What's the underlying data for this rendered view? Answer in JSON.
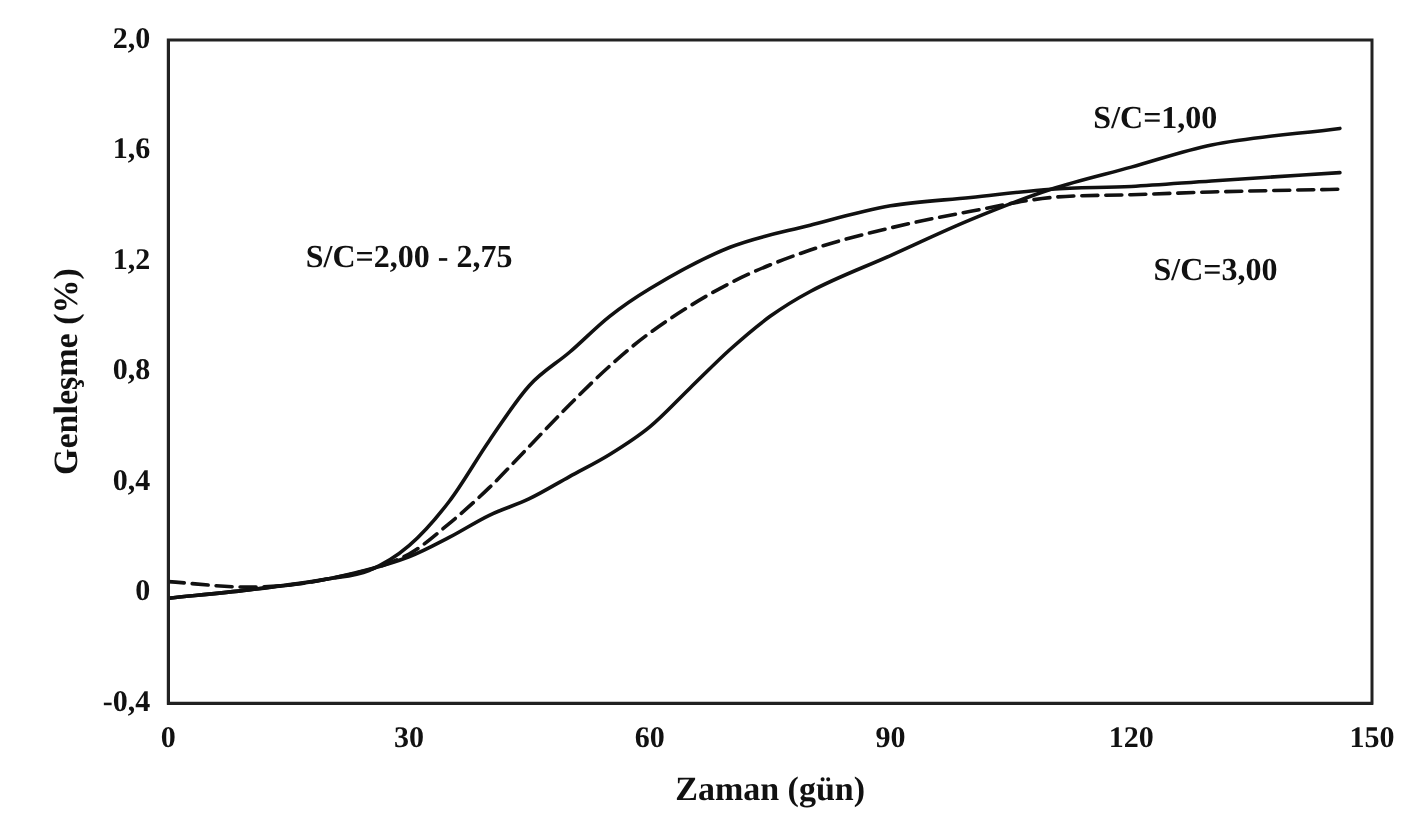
{
  "chart_data": {
    "type": "line",
    "xlabel": "Zaman (gün)",
    "ylabel": "Genleşme (%)",
    "xlim": [
      0,
      150
    ],
    "xticks": [
      0,
      30,
      60,
      90,
      120,
      150
    ],
    "ylim": [
      -0.4,
      2.0
    ],
    "yticks": [
      {
        "value": -0.4,
        "label": "-0,4"
      },
      0,
      {
        "value": 0.4,
        "label": "0,4"
      },
      {
        "value": 0.8,
        "label": "0,8"
      },
      {
        "value": 1.2,
        "label": "1,2"
      },
      {
        "value": 1.6,
        "label": "1,6"
      },
      {
        "value": 2.0,
        "label": "2,0"
      }
    ],
    "grid": false,
    "legend": false,
    "marker": "none",
    "series": [
      {
        "color": "#111111",
        "line_style": "solid",
        "x": [
          0,
          10,
          20,
          25,
          30,
          35,
          40,
          45,
          50,
          55,
          60,
          70,
          80,
          90,
          100,
          110,
          120,
          130,
          146
        ],
        "values": [
          -0.02,
          0.01,
          0.05,
          0.08,
          0.17,
          0.33,
          0.55,
          0.75,
          0.87,
          1.0,
          1.1,
          1.25,
          1.33,
          1.4,
          1.43,
          1.46,
          1.47,
          1.49,
          1.52
        ]
      },
      {
        "color": "#111111",
        "line_style": "dashed",
        "x": [
          0,
          10,
          20,
          30,
          35,
          40,
          45,
          50,
          55,
          60,
          70,
          80,
          90,
          100,
          110,
          120,
          130,
          146
        ],
        "values": [
          0.04,
          0.02,
          0.05,
          0.14,
          0.25,
          0.38,
          0.53,
          0.68,
          0.82,
          0.94,
          1.12,
          1.24,
          1.32,
          1.38,
          1.43,
          1.44,
          1.45,
          1.46
        ]
      },
      {
        "color": "#111111",
        "line_style": "solid",
        "x": [
          0,
          10,
          20,
          30,
          35,
          40,
          45,
          50,
          55,
          60,
          65,
          70,
          75,
          80,
          90,
          100,
          110,
          120,
          130,
          146
        ],
        "values": [
          -0.02,
          0.01,
          0.05,
          0.13,
          0.2,
          0.28,
          0.34,
          0.42,
          0.5,
          0.6,
          0.74,
          0.88,
          1.0,
          1.09,
          1.22,
          1.35,
          1.46,
          1.54,
          1.62,
          1.68
        ]
      }
    ],
    "annotations": [
      "S/C=1,00",
      "S/C=2,00 - 2,75",
      "S/C=3,00"
    ]
  }
}
